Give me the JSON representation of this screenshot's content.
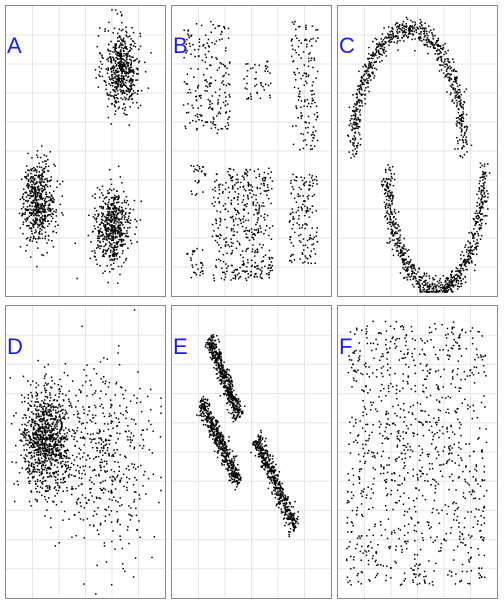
{
  "chart_data": [
    {
      "type": "scatter",
      "label": "A",
      "xlim": [
        0,
        10
      ],
      "ylim": [
        0,
        10
      ],
      "grid": true,
      "n": 1650,
      "clusters": [
        {
          "kind": "gauss",
          "cx": 7.4,
          "cy": 7.9,
          "sx": 0.6,
          "sy": 0.75,
          "n": 550
        },
        {
          "kind": "gauss",
          "cx": 1.9,
          "cy": 3.2,
          "sx": 0.55,
          "sy": 0.7,
          "n": 550
        },
        {
          "kind": "gauss",
          "cx": 6.8,
          "cy": 2.3,
          "sx": 0.6,
          "sy": 0.65,
          "n": 550
        }
      ]
    },
    {
      "type": "scatter",
      "label": "B",
      "xlim": [
        0,
        10
      ],
      "ylim": [
        0,
        10
      ],
      "grid": true,
      "n": 1020,
      "clusters": [
        {
          "kind": "uniform",
          "x0": 0.5,
          "x1": 3.6,
          "y0": 5.6,
          "y1": 9.6,
          "n": 210
        },
        {
          "kind": "uniform",
          "x0": 4.5,
          "x1": 6.3,
          "y0": 6.8,
          "y1": 8.2,
          "n": 45
        },
        {
          "kind": "uniform",
          "x0": 7.6,
          "x1": 9.4,
          "y0": 5.0,
          "y1": 9.6,
          "n": 145
        },
        {
          "kind": "uniform",
          "x0": 0.9,
          "x1": 2.0,
          "y0": 3.4,
          "y1": 4.5,
          "n": 25
        },
        {
          "kind": "uniform",
          "x0": 0.7,
          "x1": 1.8,
          "y0": 0.5,
          "y1": 1.6,
          "n": 30
        },
        {
          "kind": "uniform",
          "x0": 2.4,
          "x1": 6.4,
          "y0": 0.4,
          "y1": 4.4,
          "n": 420
        },
        {
          "kind": "uniform",
          "x0": 7.5,
          "x1": 9.4,
          "y0": 1.0,
          "y1": 4.2,
          "n": 145
        }
      ]
    },
    {
      "type": "scatter",
      "label": "C",
      "xlim": [
        0,
        10
      ],
      "ylim": [
        0,
        10
      ],
      "grid": true,
      "n": 1500,
      "clusters": [
        {
          "kind": "arc",
          "cx": 4.4,
          "cy": 5.0,
          "rx": 3.6,
          "ry": 4.3,
          "a0": 0.0,
          "a1": 3.1416,
          "noise": 0.2,
          "n": 750
        },
        {
          "kind": "arc",
          "cx": 6.2,
          "cy": 4.4,
          "rx": 3.2,
          "ry": 4.3,
          "a0": 3.1416,
          "a1": 6.2832,
          "noise": 0.2,
          "n": 750
        }
      ]
    },
    {
      "type": "scatter",
      "label": "D",
      "xlim": [
        0,
        10
      ],
      "ylim": [
        0,
        10
      ],
      "grid": true,
      "n": 1500,
      "clusters": [
        {
          "kind": "gauss",
          "cx": 2.4,
          "cy": 5.4,
          "sx": 0.8,
          "sy": 0.9,
          "n": 1000
        },
        {
          "kind": "gauss",
          "cx": 6.2,
          "cy": 4.8,
          "sx": 1.6,
          "sy": 1.7,
          "n": 500
        }
      ]
    },
    {
      "type": "scatter",
      "label": "E",
      "xlim": [
        0,
        10
      ],
      "ylim": [
        0,
        10
      ],
      "grid": true,
      "n": 1500,
      "clusters": [
        {
          "kind": "line",
          "x0": 2.2,
          "y0": 9.0,
          "x1": 4.2,
          "y1": 6.2,
          "width": 0.18,
          "n": 500
        },
        {
          "kind": "line",
          "x0": 1.6,
          "y0": 6.8,
          "x1": 4.2,
          "y1": 3.9,
          "width": 0.18,
          "n": 500
        },
        {
          "kind": "line",
          "x0": 5.3,
          "y0": 5.5,
          "x1": 7.9,
          "y1": 2.3,
          "width": 0.18,
          "n": 500
        }
      ]
    },
    {
      "type": "scatter",
      "label": "F",
      "xlim": [
        0,
        10
      ],
      "ylim": [
        0,
        10
      ],
      "grid": true,
      "n": 1000,
      "clusters": [
        {
          "kind": "uniform",
          "x0": 0.3,
          "x1": 9.6,
          "y0": 0.3,
          "y1": 9.6,
          "n": 1000
        }
      ]
    }
  ]
}
